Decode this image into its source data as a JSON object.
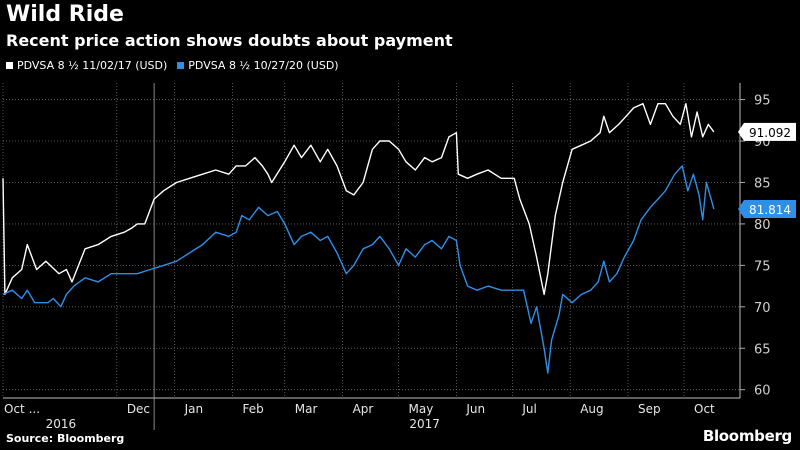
{
  "header": {
    "title": "Wild Ride",
    "subtitle": "Recent price action shows doubts about payment"
  },
  "footer": {
    "source": "Source: Bloomberg",
    "brand": "Bloomberg"
  },
  "colors": {
    "background": "#000000",
    "series_white": "#ffffff",
    "series_blue": "#2e8fe8",
    "grid": "#6a6a6a"
  },
  "chart_data": {
    "type": "line",
    "xlabel": "",
    "ylabel": "",
    "ylim": [
      59,
      97
    ],
    "y_ticks": [
      60,
      65,
      70,
      75,
      80,
      85,
      90,
      95
    ],
    "y_axis_side": "right",
    "grid": "dotted",
    "legend_position": "top-left",
    "x_range": [
      "2016-10-01",
      "2017-10-31"
    ],
    "x_tick_labels": [
      {
        "label": "Oct ...",
        "date": "2016-10-01"
      },
      {
        "label": "Dec",
        "date": "2016-12-01"
      },
      {
        "label": "Jan",
        "date": "2017-01-01"
      },
      {
        "label": "Feb",
        "date": "2017-02-01"
      },
      {
        "label": "Mar",
        "date": "2017-03-01"
      },
      {
        "label": "Apr",
        "date": "2017-04-01"
      },
      {
        "label": "May",
        "date": "2017-05-01"
      },
      {
        "label": "Jun",
        "date": "2017-06-01"
      },
      {
        "label": "Jul",
        "date": "2017-07-01"
      },
      {
        "label": "Aug",
        "date": "2017-08-01"
      },
      {
        "label": "Sep",
        "date": "2017-09-01"
      },
      {
        "label": "Oct",
        "date": "2017-10-01"
      }
    ],
    "year_labels": [
      {
        "label": "2016",
        "date": "2016-11-01"
      },
      {
        "label": "2017",
        "date": "2017-05-15"
      }
    ],
    "year_divider": "2016-12-21",
    "series": [
      {
        "name": "PDVSA 8 ½ 11/02/17 (USD)",
        "color": "#ffffff",
        "last_label": "91.092",
        "points": [
          [
            "2016-10-01",
            85.5
          ],
          [
            "2016-10-02",
            71.5
          ],
          [
            "2016-10-06",
            73.5
          ],
          [
            "2016-10-11",
            74.5
          ],
          [
            "2016-10-14",
            77.5
          ],
          [
            "2016-10-19",
            74.5
          ],
          [
            "2016-10-24",
            75.5
          ],
          [
            "2016-10-31",
            74.0
          ],
          [
            "2016-11-04",
            74.5
          ],
          [
            "2016-11-07",
            73.0
          ],
          [
            "2016-11-14",
            77.0
          ],
          [
            "2016-11-21",
            77.5
          ],
          [
            "2016-11-28",
            78.5
          ],
          [
            "2016-12-05",
            79.0
          ],
          [
            "2016-12-09",
            79.5
          ],
          [
            "2016-12-12",
            80.0
          ],
          [
            "2016-12-16",
            80.0
          ],
          [
            "2016-12-21",
            83.0
          ],
          [
            "2016-12-26",
            84.0
          ],
          [
            "2017-01-02",
            85.0
          ],
          [
            "2017-01-09",
            85.5
          ],
          [
            "2017-01-16",
            86.0
          ],
          [
            "2017-01-23",
            86.5
          ],
          [
            "2017-01-30",
            86.0
          ],
          [
            "2017-02-03",
            87.0
          ],
          [
            "2017-02-08",
            87.0
          ],
          [
            "2017-02-13",
            88.0
          ],
          [
            "2017-02-17",
            87.0
          ],
          [
            "2017-02-20",
            86.0
          ],
          [
            "2017-02-22",
            85.0
          ],
          [
            "2017-03-01",
            87.5
          ],
          [
            "2017-03-06",
            89.5
          ],
          [
            "2017-03-10",
            88.0
          ],
          [
            "2017-03-15",
            89.5
          ],
          [
            "2017-03-20",
            87.5
          ],
          [
            "2017-03-24",
            89.0
          ],
          [
            "2017-03-29",
            87.0
          ],
          [
            "2017-04-03",
            84.0
          ],
          [
            "2017-04-07",
            83.5
          ],
          [
            "2017-04-12",
            85.0
          ],
          [
            "2017-04-17",
            89.0
          ],
          [
            "2017-04-21",
            90.0
          ],
          [
            "2017-04-26",
            90.0
          ],
          [
            "2017-05-01",
            89.0
          ],
          [
            "2017-05-05",
            87.5
          ],
          [
            "2017-05-10",
            86.5
          ],
          [
            "2017-05-15",
            88.0
          ],
          [
            "2017-05-19",
            87.5
          ],
          [
            "2017-05-24",
            88.0
          ],
          [
            "2017-05-28",
            90.5
          ],
          [
            "2017-06-01",
            91.0
          ],
          [
            "2017-06-02",
            86.0
          ],
          [
            "2017-06-07",
            85.5
          ],
          [
            "2017-06-12",
            86.0
          ],
          [
            "2017-06-18",
            86.5
          ],
          [
            "2017-06-25",
            85.5
          ],
          [
            "2017-07-02",
            85.5
          ],
          [
            "2017-07-05",
            83.0
          ],
          [
            "2017-07-10",
            80.0
          ],
          [
            "2017-07-14",
            76.0
          ],
          [
            "2017-07-18",
            71.5
          ],
          [
            "2017-07-20",
            74.0
          ],
          [
            "2017-07-24",
            81.0
          ],
          [
            "2017-07-28",
            85.0
          ],
          [
            "2017-08-02",
            89.0
          ],
          [
            "2017-08-07",
            89.5
          ],
          [
            "2017-08-12",
            90.0
          ],
          [
            "2017-08-17",
            91.0
          ],
          [
            "2017-08-19",
            93.0
          ],
          [
            "2017-08-22",
            91.0
          ],
          [
            "2017-08-27",
            92.0
          ],
          [
            "2017-08-31",
            93.0
          ],
          [
            "2017-09-04",
            94.0
          ],
          [
            "2017-09-09",
            94.5
          ],
          [
            "2017-09-13",
            92.0
          ],
          [
            "2017-09-17",
            94.5
          ],
          [
            "2017-09-21",
            94.5
          ],
          [
            "2017-09-25",
            93.0
          ],
          [
            "2017-09-29",
            92.0
          ],
          [
            "2017-10-02",
            94.5
          ],
          [
            "2017-10-05",
            90.5
          ],
          [
            "2017-10-08",
            93.5
          ],
          [
            "2017-10-11",
            90.5
          ],
          [
            "2017-10-14",
            92.0
          ],
          [
            "2017-10-17",
            91.1
          ]
        ]
      },
      {
        "name": "PDVSA 8 ½ 10/27/20 (USD)",
        "color": "#2e8fe8",
        "last_label": "81.814",
        "points": [
          [
            "2016-10-01",
            71.5
          ],
          [
            "2016-10-06",
            72.0
          ],
          [
            "2016-10-11",
            71.0
          ],
          [
            "2016-10-14",
            72.0
          ],
          [
            "2016-10-18",
            70.5
          ],
          [
            "2016-10-21",
            70.5
          ],
          [
            "2016-10-25",
            70.5
          ],
          [
            "2016-10-28",
            71.0
          ],
          [
            "2016-11-01",
            70.0
          ],
          [
            "2016-11-04",
            71.5
          ],
          [
            "2016-11-08",
            72.5
          ],
          [
            "2016-11-14",
            73.5
          ],
          [
            "2016-11-21",
            73.0
          ],
          [
            "2016-11-28",
            74.0
          ],
          [
            "2016-12-05",
            74.0
          ],
          [
            "2016-12-12",
            74.0
          ],
          [
            "2016-12-19",
            74.5
          ],
          [
            "2016-12-26",
            75.0
          ],
          [
            "2017-01-02",
            75.5
          ],
          [
            "2017-01-09",
            76.5
          ],
          [
            "2017-01-16",
            77.5
          ],
          [
            "2017-01-23",
            79.0
          ],
          [
            "2017-01-30",
            78.5
          ],
          [
            "2017-02-03",
            79.0
          ],
          [
            "2017-02-06",
            81.0
          ],
          [
            "2017-02-10",
            80.5
          ],
          [
            "2017-02-15",
            82.0
          ],
          [
            "2017-02-20",
            81.0
          ],
          [
            "2017-02-25",
            81.5
          ],
          [
            "2017-03-01",
            80.0
          ],
          [
            "2017-03-06",
            77.5
          ],
          [
            "2017-03-10",
            78.5
          ],
          [
            "2017-03-15",
            79.0
          ],
          [
            "2017-03-20",
            78.0
          ],
          [
            "2017-03-24",
            78.5
          ],
          [
            "2017-03-29",
            76.5
          ],
          [
            "2017-04-03",
            74.0
          ],
          [
            "2017-04-07",
            75.0
          ],
          [
            "2017-04-12",
            77.0
          ],
          [
            "2017-04-17",
            77.5
          ],
          [
            "2017-04-21",
            78.5
          ],
          [
            "2017-04-26",
            77.0
          ],
          [
            "2017-05-01",
            75.0
          ],
          [
            "2017-05-05",
            77.0
          ],
          [
            "2017-05-10",
            76.0
          ],
          [
            "2017-05-15",
            77.5
          ],
          [
            "2017-05-19",
            78.0
          ],
          [
            "2017-05-24",
            77.0
          ],
          [
            "2017-05-28",
            78.5
          ],
          [
            "2017-06-01",
            78.0
          ],
          [
            "2017-06-03",
            75.0
          ],
          [
            "2017-06-07",
            72.5
          ],
          [
            "2017-06-12",
            72.0
          ],
          [
            "2017-06-18",
            72.5
          ],
          [
            "2017-06-25",
            72.0
          ],
          [
            "2017-07-02",
            72.0
          ],
          [
            "2017-07-07",
            72.0
          ],
          [
            "2017-07-11",
            68.0
          ],
          [
            "2017-07-14",
            70.0
          ],
          [
            "2017-07-18",
            65.0
          ],
          [
            "2017-07-20",
            62.0
          ],
          [
            "2017-07-22",
            66.0
          ],
          [
            "2017-07-26",
            69.0
          ],
          [
            "2017-07-28",
            71.5
          ],
          [
            "2017-08-02",
            70.5
          ],
          [
            "2017-08-07",
            71.5
          ],
          [
            "2017-08-12",
            72.0
          ],
          [
            "2017-08-16",
            73.0
          ],
          [
            "2017-08-19",
            75.5
          ],
          [
            "2017-08-22",
            73.0
          ],
          [
            "2017-08-26",
            74.0
          ],
          [
            "2017-08-30",
            76.0
          ],
          [
            "2017-09-04",
            78.0
          ],
          [
            "2017-09-08",
            80.5
          ],
          [
            "2017-09-13",
            82.0
          ],
          [
            "2017-09-17",
            83.0
          ],
          [
            "2017-09-21",
            84.0
          ],
          [
            "2017-09-26",
            86.0
          ],
          [
            "2017-09-30",
            87.0
          ],
          [
            "2017-10-03",
            84.0
          ],
          [
            "2017-10-06",
            86.0
          ],
          [
            "2017-10-09",
            83.5
          ],
          [
            "2017-10-11",
            80.5
          ],
          [
            "2017-10-13",
            85.0
          ],
          [
            "2017-10-17",
            81.8
          ]
        ]
      }
    ]
  }
}
